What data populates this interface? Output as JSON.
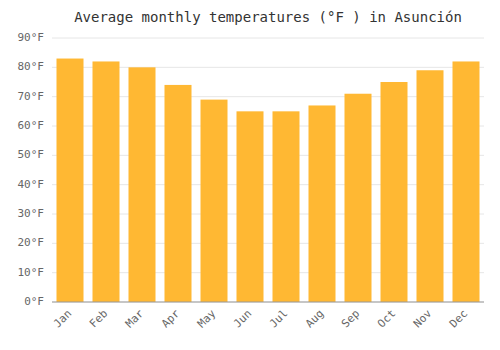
{
  "chart_data": {
    "type": "bar",
    "title": "Average monthly temperatures (°F ) in Asunción",
    "categories": [
      "Jan",
      "Feb",
      "Mar",
      "Apr",
      "May",
      "Jun",
      "Jul",
      "Aug",
      "Sep",
      "Oct",
      "Nov",
      "Dec"
    ],
    "values": [
      83,
      82,
      80,
      74,
      69,
      65,
      65,
      67,
      71,
      75,
      79,
      82
    ],
    "color": "#FFB833",
    "ylim": [
      0,
      90
    ],
    "yticks": [
      {
        "value": 0,
        "label": "0°F"
      },
      {
        "value": 10,
        "label": "10°F"
      },
      {
        "value": 20,
        "label": "20°F"
      },
      {
        "value": 30,
        "label": "30°F"
      },
      {
        "value": 40,
        "label": "40°F"
      },
      {
        "value": 50,
        "label": "50°F"
      },
      {
        "value": 60,
        "label": "60°F"
      },
      {
        "value": 70,
        "label": "70°F"
      },
      {
        "value": 80,
        "label": "80°F"
      },
      {
        "value": 90,
        "label": "90°F"
      }
    ],
    "grid": true
  }
}
